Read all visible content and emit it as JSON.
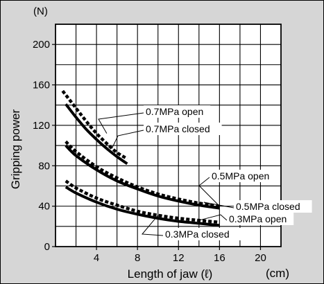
{
  "chart_data": {
    "type": "line",
    "ylabel": "Gripping power",
    "yunit": "(N)",
    "xlabel": "Length of jaw (ℓ)",
    "xunit": "(cm)",
    "xlim": [
      0,
      22
    ],
    "ylim": [
      0,
      220
    ],
    "x_ticks": [
      4,
      8,
      12,
      16,
      20
    ],
    "y_ticks": [
      0,
      40,
      80,
      120,
      160,
      200
    ],
    "grid": true,
    "background": "#ffffff",
    "frame_color": "#d6d6d6",
    "series": [
      {
        "name": "0.7MPa open",
        "style": "dashed",
        "points": [
          [
            0.7,
            154
          ],
          [
            2,
            137
          ],
          [
            3,
            124
          ],
          [
            4,
            112
          ],
          [
            5,
            102
          ],
          [
            6,
            93
          ],
          [
            7,
            87
          ]
        ]
      },
      {
        "name": "0.7MPa closed",
        "style": "solid",
        "points": [
          [
            1,
            141
          ],
          [
            2,
            128
          ],
          [
            3,
            116
          ],
          [
            4,
            106
          ],
          [
            5,
            97
          ],
          [
            6,
            89
          ],
          [
            7,
            82
          ]
        ]
      },
      {
        "name": "0.5MPa open",
        "style": "dashed",
        "points": [
          [
            1,
            104
          ],
          [
            2,
            94
          ],
          [
            4,
            79
          ],
          [
            6,
            68
          ],
          [
            8,
            59
          ],
          [
            10,
            52
          ],
          [
            12,
            47
          ],
          [
            14,
            43
          ],
          [
            16,
            40
          ]
        ]
      },
      {
        "name": "0.5MPa closed",
        "style": "solid",
        "points": [
          [
            1,
            100
          ],
          [
            2,
            90
          ],
          [
            4,
            76
          ],
          [
            6,
            65
          ],
          [
            8,
            57
          ],
          [
            10,
            50
          ],
          [
            12,
            45
          ],
          [
            14,
            41
          ],
          [
            16,
            38
          ]
        ]
      },
      {
        "name": "0.3MPa open",
        "style": "dashed",
        "points": [
          [
            1,
            65
          ],
          [
            2,
            58
          ],
          [
            4,
            48
          ],
          [
            6,
            41
          ],
          [
            8,
            35
          ],
          [
            10,
            31
          ],
          [
            12,
            28
          ],
          [
            14,
            26
          ],
          [
            16,
            24
          ]
        ]
      },
      {
        "name": "0.3MPa closed",
        "style": "solid",
        "points": [
          [
            1,
            59
          ],
          [
            2,
            53
          ],
          [
            4,
            44
          ],
          [
            6,
            37
          ],
          [
            8,
            32
          ],
          [
            10,
            28
          ],
          [
            12,
            25
          ],
          [
            14,
            23
          ],
          [
            16,
            21
          ]
        ]
      }
    ]
  }
}
